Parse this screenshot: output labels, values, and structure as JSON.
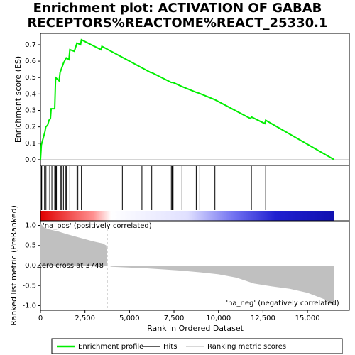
{
  "chart_data": [
    {
      "type": "line",
      "title": [
        "Enrichment plot: ACTIVATION OF GABAB",
        "RECEPTORS%REACTOME%REACT_25330.1"
      ],
      "ylabel": "Enrichment score (ES)",
      "color": "#00ee00",
      "xlim": [
        0,
        17350
      ],
      "x": [
        0,
        50,
        150,
        250,
        300,
        400,
        480,
        560,
        600,
        800,
        850,
        1050,
        1100,
        1200,
        1300,
        1450,
        1600,
        1650,
        1900,
        2050,
        2250,
        2300,
        3400,
        3450,
        6200,
        6250,
        7350,
        7450,
        7950,
        8750,
        8900,
        9800,
        11800,
        11850,
        12600,
        12650,
        16500
      ],
      "values": [
        0.0,
        0.09,
        0.13,
        0.17,
        0.2,
        0.21,
        0.24,
        0.25,
        0.31,
        0.31,
        0.5,
        0.48,
        0.53,
        0.56,
        0.59,
        0.62,
        0.61,
        0.67,
        0.66,
        0.71,
        0.7,
        0.73,
        0.67,
        0.69,
        0.53,
        0.53,
        0.47,
        0.47,
        0.445,
        0.41,
        0.405,
        0.365,
        0.25,
        0.26,
        0.22,
        0.24,
        0.0
      ],
      "ylim": [
        -0.035,
        0.769
      ],
      "yticks": [
        {
          "value": 0.0,
          "label": "0.0"
        },
        0.1,
        0.2,
        0.3,
        0.4,
        0.5,
        0.6,
        0.7
      ]
    },
    {
      "type": "hits",
      "xlim": [
        0,
        17350
      ],
      "color": "#000000",
      "x": [
        60,
        130,
        230,
        310,
        420,
        520,
        640,
        800,
        860,
        900,
        1100,
        1150,
        1200,
        1290,
        1400,
        1450,
        1650,
        2050,
        2100,
        2300,
        3450,
        4600,
        5700,
        6250,
        7350,
        7400,
        7450,
        7950,
        8750,
        8950,
        9800,
        11850,
        12650
      ]
    },
    {
      "type": "area",
      "ylabel": "Ranked list metric (PreRanked)",
      "xlabel": "Rank in Ordered Dataset",
      "color": "#c0c0c0",
      "xlim": [
        0,
        17350
      ],
      "x": [
        0,
        200,
        500,
        1000,
        1500,
        2000,
        2500,
        3000,
        3500,
        3700,
        3748,
        4000,
        5000,
        6000,
        7000,
        8000,
        9000,
        10000,
        11000,
        12000,
        13000,
        14000,
        15000,
        16000,
        16500
      ],
      "values": [
        1.05,
        0.95,
        0.9,
        0.85,
        0.78,
        0.72,
        0.66,
        0.6,
        0.55,
        0.5,
        0.0,
        -0.03,
        -0.05,
        -0.07,
        -0.1,
        -0.13,
        -0.17,
        -0.22,
        -0.3,
        -0.45,
        -0.52,
        -0.58,
        -0.68,
        -0.85,
        -1.0
      ],
      "ylim": [
        -1.115,
        1.115
      ],
      "yticks": [
        {
          "value": 1.0,
          "label": "1.0"
        },
        0.5,
        {
          "value": 0.0,
          "label": "0.0"
        },
        -0.5,
        {
          "value": -1.0,
          "label": "-1.0"
        }
      ],
      "xticks": [
        0,
        {
          "value": 2500,
          "label": "2,500"
        },
        {
          "value": 5000,
          "label": "5,000"
        },
        {
          "value": 7500,
          "label": "7,500"
        },
        {
          "value": 10000,
          "label": "10,000"
        },
        {
          "value": 12500,
          "label": "12,500"
        },
        {
          "value": 15000,
          "label": "15,000"
        }
      ],
      "zero_cross": 3748,
      "annotations": [
        "'na_pos' (positively correlated)",
        "Zero cross at 3748",
        "'na_neg' (negatively correlated)"
      ]
    }
  ],
  "legend": [
    {
      "name": "Enrichment profile",
      "color": "#00ee00"
    },
    {
      "name": "Hits",
      "color": "#000000"
    },
    {
      "name": "Ranking metric scores",
      "color": "#c0c0c0"
    }
  ]
}
